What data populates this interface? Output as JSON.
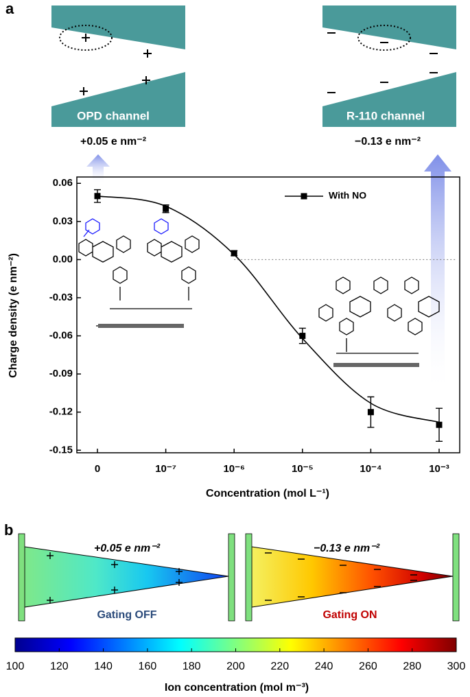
{
  "panel_labels": [
    "a",
    "b"
  ],
  "channels": [
    {
      "label": "OPD channel",
      "charge": "+0.05 e nm⁻²"
    },
    {
      "label": "R-110 channel",
      "charge": "−0.13 e nm⁻²"
    }
  ],
  "chart_data": {
    "type": "scatter",
    "x_label": "Concentration (mol L⁻¹)",
    "y_label": "Charge density (e nm⁻²)",
    "categories": [
      "0",
      "10⁻⁷",
      "10⁻⁶",
      "10⁻⁵",
      "10⁻⁴",
      "10⁻³"
    ],
    "series": [
      {
        "name": "With NO",
        "color": "#000000",
        "values": [
          0.05,
          0.04,
          0.005,
          -0.06,
          -0.12,
          -0.13
        ],
        "errors": [
          0.005,
          0.003,
          0.002,
          0.006,
          0.012,
          0.013
        ],
        "fit": [
          0.05,
          0.042,
          0.004,
          -0.062,
          -0.113,
          -0.128
        ]
      }
    ],
    "ylim": [
      -0.152,
      0.065
    ],
    "yticks": [
      0.06,
      0.03,
      {
        "value": 0,
        "label": "0.00"
      },
      -0.03,
      -0.06,
      -0.09,
      -0.12,
      -0.15
    ],
    "legend": "upper right",
    "zero_line": true
  },
  "gating": [
    {
      "charge": "+0.05 e nm⁻²",
      "state": "Gating OFF"
    },
    {
      "charge": "−0.13 e nm⁻²",
      "state": "Gating ON"
    }
  ],
  "colorbar": {
    "label": "Ion concentration (mol m⁻³)",
    "lim": [
      100,
      300
    ],
    "ticks": [
      100,
      120,
      140,
      160,
      180,
      200,
      220,
      240,
      260,
      280,
      300
    ],
    "colormap": "jet"
  }
}
